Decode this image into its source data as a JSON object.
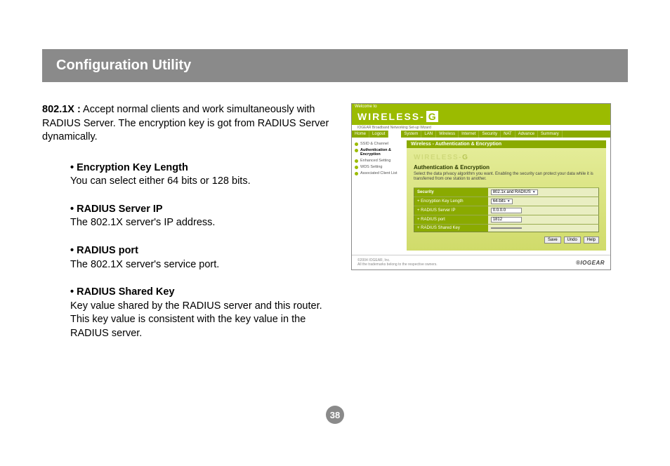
{
  "page": {
    "header": "Configuration Utility",
    "number": "38"
  },
  "intro": {
    "label": "802.1X :",
    "text": " Accept normal clients and work simultaneously with RADIUS Server. The encryption key is got from RADIUS Server dynamically."
  },
  "bullets": [
    {
      "title": "• Encryption Key Length",
      "desc": "You can select either 64 bits or 128 bits."
    },
    {
      "title": "• RADIUS Server IP",
      "desc": "The 802.1X server's IP address."
    },
    {
      "title": "• RADIUS port",
      "desc": "The 802.1X server's service port."
    },
    {
      "title": "• RADIUS Shared Key",
      "desc": "Key value shared by the RADIUS server and this router. This key value is consistent with the key value in the RADIUS server."
    }
  ],
  "screenshot": {
    "welcome": "Welcome to",
    "logo_main": "WIRELESS-",
    "logo_g": "G",
    "tagline": "IOGEAR Broadband Networking Set-up Wizard",
    "nav_left": [
      "Home",
      "Logout"
    ],
    "nav_right": [
      "System",
      "LAN",
      "Wireless",
      "Internet",
      "Security",
      "NAT",
      "Advance",
      "Summary"
    ],
    "sidebar": [
      {
        "label": "SSID & Channel",
        "active": false
      },
      {
        "label": "Authentication & Encryption",
        "active": true
      },
      {
        "label": "Enhanced Setting",
        "active": false
      },
      {
        "label": "WDS Setting",
        "active": false
      },
      {
        "label": "Associated Client List",
        "active": false
      }
    ],
    "section_title": "Wireless - Authentication & Encryption",
    "panel_heading": "Authentication & Encryption",
    "panel_sub": "Select the data privacy algorithm you want. Enabling the security can protect your data while it is transferred from one station to another.",
    "rows": [
      {
        "label": "Security",
        "type": "dropdown",
        "value": "802.1x and RADIUS"
      },
      {
        "label": "+ Encryption Key Length",
        "type": "dropdown",
        "value": "64-bits"
      },
      {
        "label": "+ RADIUS Server IP",
        "type": "input",
        "value": "0.0.0.0"
      },
      {
        "label": "+ RADIUS port",
        "type": "input",
        "value": "1812"
      },
      {
        "label": "+ RADIUS Shared Key",
        "type": "input",
        "value": ""
      }
    ],
    "buttons": [
      "Save",
      "Undo",
      "Help"
    ],
    "footer_left": "©2004 IOGEAR, Inc.",
    "footer_brand": "®IOGEAR",
    "footer_note": "All the trademarks belong to the respective owners."
  }
}
